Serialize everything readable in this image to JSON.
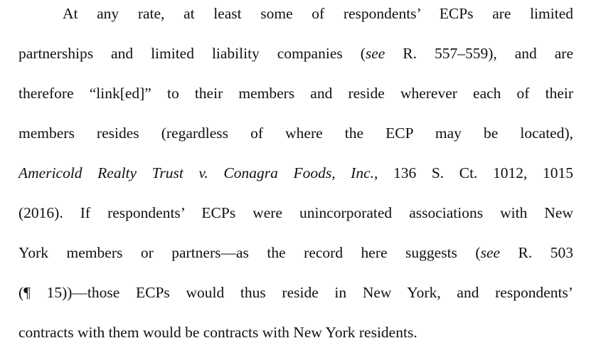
{
  "document": {
    "lines": [
      {
        "a": "At any rate, at least some of respondents’ ECPs are limited"
      },
      {
        "a": "partnerships and limited liability companies (",
        "b": "see",
        "c": " R. 557–559), and are"
      },
      {
        "a": "therefore “link[ed]” to their members and reside wherever each of their"
      },
      {
        "a": "members resides (regardless of where the ECP may be located),"
      },
      {
        "a": "Americold Realty Trust v. Conagra Foods, Inc.",
        "b": ", 136 S. Ct. 1012, 1015"
      },
      {
        "a": "(2016). If respondents’ ECPs were unincorporated associations with New"
      },
      {
        "a": "York members or partners—as the record here suggests (",
        "b": "see",
        "c": " R. 503"
      },
      {
        "a": "(¶ 15))—those ECPs would thus reside in New York, and respondents’"
      },
      {
        "a": "contracts with them would be contracts with New York residents."
      }
    ]
  }
}
